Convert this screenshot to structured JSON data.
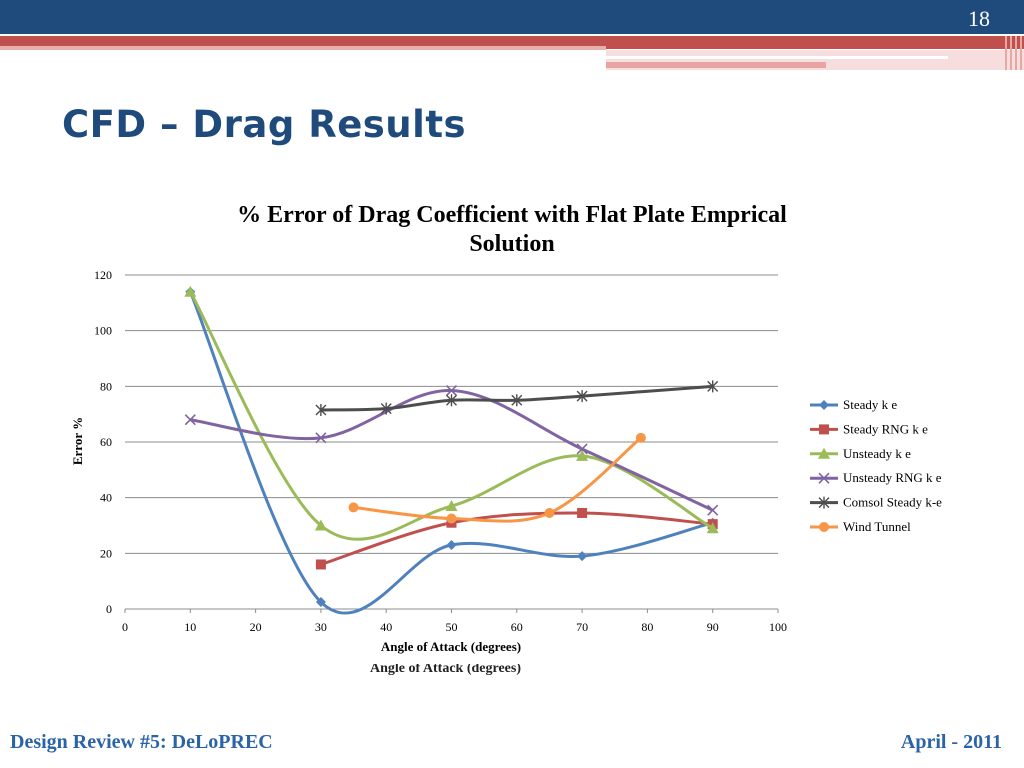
{
  "slide": {
    "number": "18",
    "title": "CFD – Drag Results",
    "footer_left": "Design Review #5: DeLoPREC",
    "footer_right": "April - 2011",
    "colors": {
      "header_blue": "#1f4a7c",
      "accent_red": "#c0504d",
      "footer_blue": "#2b63a8"
    }
  },
  "chart_data": {
    "type": "scatter",
    "title_lines": [
      "% Error of Drag Coefficient with Flat Plate Emprical",
      "Solution"
    ],
    "xlabel": "Angle of Attack (degrees)",
    "ylabel": "Error %",
    "xlim": [
      0,
      100
    ],
    "ylim": [
      0,
      120
    ],
    "xticks": [
      "0",
      "10",
      "20",
      "30",
      "40",
      "50",
      "60",
      "70",
      "80",
      "90",
      "100"
    ],
    "yticks": [
      "0",
      "20",
      "40",
      "60",
      "80",
      "100",
      "120"
    ],
    "grid": "horizontal",
    "legend_position": "right",
    "series": [
      {
        "name": "Steady k e",
        "color": "#4f81bd",
        "marker": "diamond",
        "points": [
          [
            10,
            114
          ],
          [
            30,
            2.5
          ],
          [
            50,
            23
          ],
          [
            70,
            19
          ],
          [
            90,
            31
          ]
        ]
      },
      {
        "name": "Steady RNG k e",
        "color": "#c0504d",
        "marker": "square",
        "points": [
          [
            30,
            16
          ],
          [
            50,
            31
          ],
          [
            70,
            34.5
          ],
          [
            90,
            30.5
          ]
        ]
      },
      {
        "name": "Unsteady k e",
        "color": "#9bbb59",
        "marker": "triangle",
        "points": [
          [
            10,
            114
          ],
          [
            30,
            30
          ],
          [
            50,
            37
          ],
          [
            70,
            55
          ],
          [
            90,
            29
          ]
        ]
      },
      {
        "name": "Unsteady RNG k e",
        "color": "#8064a2",
        "marker": "x",
        "points": [
          [
            10,
            68
          ],
          [
            30,
            61.5
          ],
          [
            50,
            78.5
          ],
          [
            70,
            57.5
          ],
          [
            90,
            35.5
          ]
        ]
      },
      {
        "name": "Comsol Steady k-e",
        "color": "#4d4d4d",
        "marker": "star",
        "points": [
          [
            30,
            71.5
          ],
          [
            40,
            72
          ],
          [
            50,
            75
          ],
          [
            60,
            75
          ],
          [
            70,
            76.5
          ],
          [
            90,
            80
          ]
        ]
      },
      {
        "name": "Wind Tunnel",
        "color": "#f79646",
        "marker": "circle",
        "points": [
          [
            35,
            36.5
          ],
          [
            50,
            32.5
          ],
          [
            65,
            34.5
          ],
          [
            79,
            61.5
          ]
        ]
      }
    ]
  }
}
